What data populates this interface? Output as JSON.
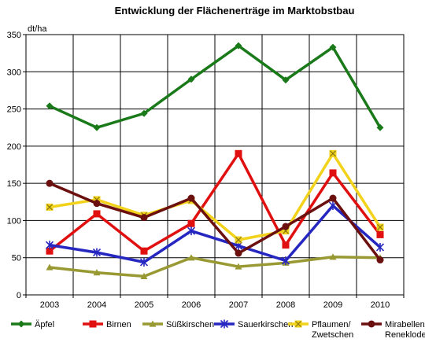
{
  "chart_data": {
    "type": "line",
    "title": "Entwicklung der Flächenerträge  im Marktobstbau",
    "ylabel": "dt/ha",
    "xlabel": "",
    "categories": [
      "2003",
      "2004",
      "2005",
      "2006",
      "2007",
      "2008",
      "2009",
      "2010"
    ],
    "ylim": [
      0,
      350
    ],
    "yticks": [
      0,
      50,
      100,
      150,
      200,
      250,
      300,
      350
    ],
    "grid": true,
    "legend_position": "bottom",
    "series": [
      {
        "name": "Äpfel",
        "color": "#1a7a1a",
        "marker": "diamond",
        "values": [
          254,
          225,
          244,
          290,
          335,
          289,
          333,
          225
        ]
      },
      {
        "name": "Birnen",
        "color": "#e01010",
        "marker": "square",
        "values": [
          59,
          109,
          59,
          96,
          190,
          67,
          164,
          81
        ]
      },
      {
        "name": "Süßkirschen",
        "color": "#999933",
        "marker": "triangle",
        "values": [
          37,
          30,
          25,
          50,
          38,
          43,
          51,
          50
        ]
      },
      {
        "name": "Sauerkirschen",
        "color": "#2626c0",
        "marker": "asterisk",
        "values": [
          67,
          57,
          44,
          86,
          66,
          46,
          120,
          64
        ]
      },
      {
        "name_lines": [
          "Pflaumen/",
          "Zwetschen"
        ],
        "color": "#f2d21a",
        "marker": "star",
        "values": [
          118,
          128,
          107,
          127,
          74,
          86,
          190,
          91
        ]
      },
      {
        "name_lines": [
          "Mirabellen/",
          "Renekloden"
        ],
        "color": "#6b0f0f",
        "marker": "circle",
        "values": [
          150,
          123,
          104,
          130,
          56,
          92,
          130,
          47
        ]
      }
    ]
  }
}
